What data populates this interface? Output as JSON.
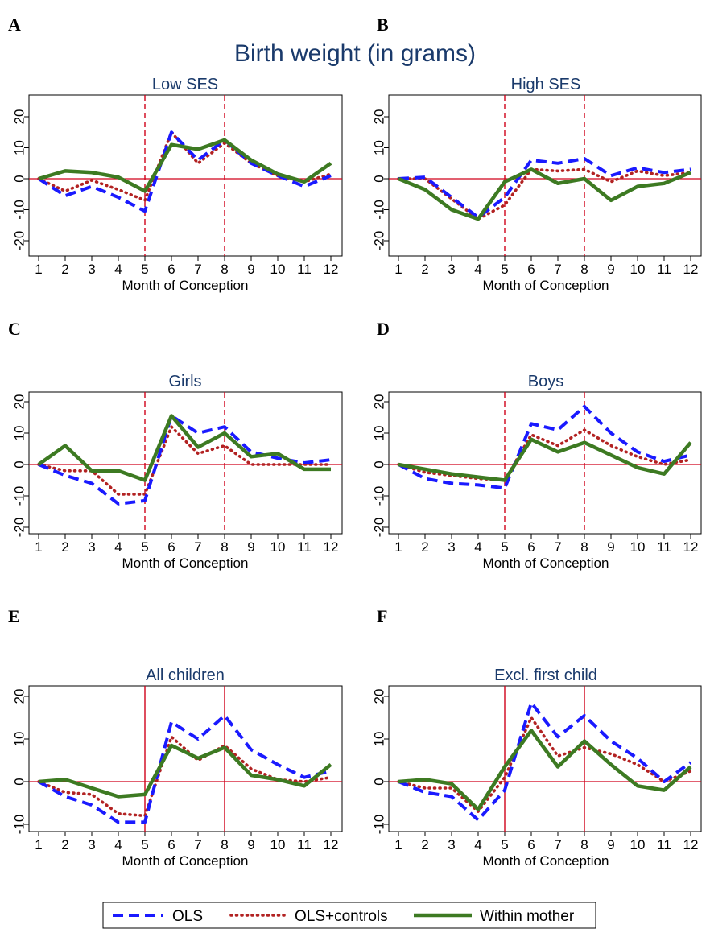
{
  "figure": {
    "main_title": "Birth weight (in grams)",
    "colors": {
      "ols": "#1a1aff",
      "controls": "#b22222",
      "within": "#3d7a22",
      "zero_line": "#d0021b",
      "title": "#1a3a6b"
    },
    "legend": {
      "placement": "bottom-center",
      "items": [
        {
          "key": "ols",
          "label": "OLS",
          "style": "dashed"
        },
        {
          "key": "controls",
          "label": "OLS+controls",
          "style": "dotted"
        },
        {
          "key": "within",
          "label": "Within mother",
          "style": "solid"
        }
      ]
    }
  },
  "chart_data": [
    {
      "type": "line",
      "panel_label": "A",
      "title": "Low SES",
      "xlabel": "Month of Conception",
      "x": [
        1,
        2,
        3,
        4,
        5,
        6,
        7,
        8,
        9,
        10,
        11,
        12
      ],
      "ylim": [
        -22,
        22
      ],
      "yticks": [
        -20,
        -10,
        0,
        10,
        20
      ],
      "vlines": [
        5,
        8
      ],
      "vline_style": "dashed",
      "series": [
        {
          "key": "ols",
          "name": "OLS",
          "values": [
            0,
            -5.5,
            -2.5,
            -6,
            -10.5,
            15,
            6,
            12.5,
            5,
            1,
            -2.5,
            1
          ]
        },
        {
          "key": "controls",
          "name": "OLS+controls",
          "values": [
            0,
            -4,
            -0.5,
            -3.5,
            -7,
            15,
            5,
            11.5,
            5,
            1,
            -1,
            1.5
          ]
        },
        {
          "key": "within",
          "name": "Within mother",
          "values": [
            0,
            2.5,
            2,
            0.5,
            -4,
            11,
            9.5,
            12.5,
            6,
            1.5,
            -1,
            5
          ]
        }
      ]
    },
    {
      "type": "line",
      "panel_label": "B",
      "title": "High SES",
      "xlabel": "Month of Conception",
      "x": [
        1,
        2,
        3,
        4,
        5,
        6,
        7,
        8,
        9,
        10,
        11,
        12
      ],
      "ylim": [
        -22,
        22
      ],
      "yticks": [
        -20,
        -10,
        0,
        10,
        20
      ],
      "vlines": [
        5,
        8
      ],
      "vline_style": "dashed",
      "series": [
        {
          "key": "ols",
          "name": "OLS",
          "values": [
            0,
            0.5,
            -6,
            -12.5,
            -6,
            6,
            5,
            6.5,
            1,
            3.5,
            2,
            3
          ]
        },
        {
          "key": "controls",
          "name": "OLS+controls",
          "values": [
            0,
            0,
            -6.5,
            -13,
            -8.5,
            3,
            2.5,
            3,
            -1,
            2.5,
            1,
            2
          ]
        },
        {
          "key": "within",
          "name": "Within mother",
          "values": [
            0,
            -3.5,
            -10,
            -13,
            -1,
            3,
            -1.5,
            0,
            -7,
            -2.5,
            -1.5,
            2
          ]
        }
      ]
    },
    {
      "type": "line",
      "panel_label": "C",
      "title": "Girls",
      "xlabel": "Month of Conception",
      "x": [
        1,
        2,
        3,
        4,
        5,
        6,
        7,
        8,
        9,
        10,
        11,
        12
      ],
      "ylim": [
        -22,
        22
      ],
      "yticks": [
        -20,
        -10,
        0,
        10,
        20
      ],
      "vlines": [
        5,
        8
      ],
      "vline_style": "dashed",
      "series": [
        {
          "key": "ols",
          "name": "OLS",
          "values": [
            0,
            -3.5,
            -6,
            -12.5,
            -11.5,
            15.5,
            10,
            12,
            4,
            2,
            0.5,
            1.5
          ]
        },
        {
          "key": "controls",
          "name": "OLS+controls",
          "values": [
            0,
            -2,
            -2,
            -9.5,
            -9.5,
            12,
            3.5,
            6,
            0,
            0,
            0,
            0
          ]
        },
        {
          "key": "within",
          "name": "Within mother",
          "values": [
            0,
            6,
            -2,
            -2,
            -5,
            15.5,
            5.5,
            10,
            2.5,
            3.5,
            -1.5,
            -1.5
          ]
        }
      ]
    },
    {
      "type": "line",
      "panel_label": "D",
      "title": "Boys",
      "xlabel": "Month of Conception",
      "x": [
        1,
        2,
        3,
        4,
        5,
        6,
        7,
        8,
        9,
        10,
        11,
        12
      ],
      "ylim": [
        -22,
        22
      ],
      "yticks": [
        -20,
        -10,
        0,
        10,
        20
      ],
      "vlines": [
        5,
        8
      ],
      "vline_style": "dashed",
      "series": [
        {
          "key": "ols",
          "name": "OLS",
          "values": [
            0,
            -4.5,
            -6,
            -6.5,
            -7.5,
            13,
            11,
            18.5,
            10,
            4,
            1,
            3
          ]
        },
        {
          "key": "controls",
          "name": "OLS+controls",
          "values": [
            0,
            -2.5,
            -3.5,
            -4.5,
            -5,
            9.5,
            6,
            11,
            6,
            2.5,
            0,
            1.5
          ]
        },
        {
          "key": "within",
          "name": "Within mother",
          "values": [
            0,
            -1.5,
            -3,
            -4,
            -5,
            8,
            4,
            7,
            3,
            -1,
            -3,
            7
          ]
        }
      ]
    },
    {
      "type": "line",
      "panel_label": "E",
      "title": "All children",
      "xlabel": "Month of Conception",
      "x": [
        1,
        2,
        3,
        4,
        5,
        6,
        7,
        8,
        9,
        10,
        11,
        12
      ],
      "ylim": [
        -12,
        22
      ],
      "yticks": [
        -10,
        0,
        10,
        20
      ],
      "vlines": [
        5,
        8
      ],
      "vline_style": "solid",
      "series": [
        {
          "key": "ols",
          "name": "OLS",
          "values": [
            0,
            -3.5,
            -5.5,
            -9.5,
            -9.5,
            14,
            10,
            15.5,
            7.5,
            4,
            1,
            2.5
          ]
        },
        {
          "key": "controls",
          "name": "OLS+controls",
          "values": [
            0,
            -2.5,
            -3,
            -7.5,
            -8,
            10.5,
            5,
            8.5,
            3,
            0.5,
            0,
            1
          ]
        },
        {
          "key": "within",
          "name": "Within mother",
          "values": [
            0,
            0.5,
            -1.5,
            -3.5,
            -3,
            8.5,
            5.5,
            8,
            1.5,
            0.5,
            -1,
            4
          ]
        }
      ]
    },
    {
      "type": "line",
      "panel_label": "F",
      "title": "Excl. first child",
      "xlabel": "Month of Conception",
      "x": [
        1,
        2,
        3,
        4,
        5,
        6,
        7,
        8,
        9,
        10,
        11,
        12
      ],
      "ylim": [
        -12,
        22
      ],
      "yticks": [
        -10,
        0,
        10,
        20
      ],
      "vlines": [
        5,
        8
      ],
      "vline_style": "solid",
      "series": [
        {
          "key": "ols",
          "name": "OLS",
          "values": [
            0,
            -2.5,
            -3.5,
            -9,
            -2,
            18.5,
            10.5,
            15.5,
            9.5,
            5.5,
            0,
            4.5
          ]
        },
        {
          "key": "controls",
          "name": "OLS+controls",
          "values": [
            0,
            -1.5,
            -1.5,
            -7,
            1,
            15,
            6,
            8,
            6.5,
            4,
            0,
            2.5
          ]
        },
        {
          "key": "within",
          "name": "Within mother",
          "values": [
            0,
            0.5,
            -0.5,
            -6.5,
            3.5,
            12,
            3.5,
            9.5,
            4,
            -1,
            -2,
            3.5
          ]
        }
      ]
    }
  ]
}
